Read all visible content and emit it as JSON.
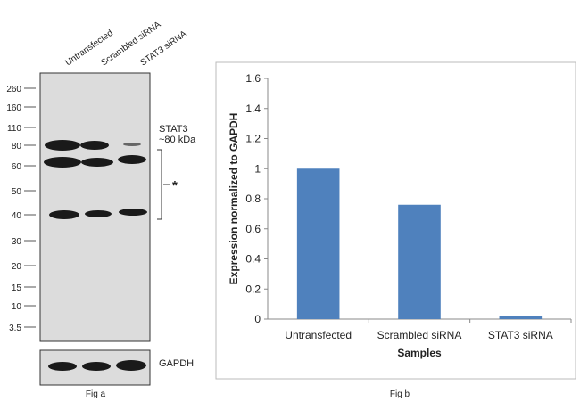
{
  "blot": {
    "lanes": [
      "Untransfected",
      "Scrambled siRNA",
      "STAT3  siRNA"
    ],
    "markers": [
      "260",
      "160",
      "110",
      "80",
      "60",
      "50",
      "40",
      "30",
      "20",
      "15",
      "10",
      "3.5"
    ],
    "target_label": "STAT3",
    "target_size": "~80 kDa",
    "nonspecific_label": "*",
    "loading_control": "GAPDH",
    "caption": "Fig a"
  },
  "chart_data": {
    "type": "bar",
    "categories": [
      "Untransfected",
      "Scrambled siRNA",
      "STAT3 siRNA"
    ],
    "values": [
      1.0,
      0.76,
      0.02
    ],
    "color": "#4f81bd",
    "ylim": [
      0,
      1.6
    ],
    "yticks": [
      0,
      0.2,
      0.4,
      0.6,
      0.8,
      1,
      1.2,
      1.4,
      1.6
    ],
    "ylabel": "Expression normalized to GAPDH",
    "xlabel": "Samples",
    "caption": "Fig b"
  }
}
